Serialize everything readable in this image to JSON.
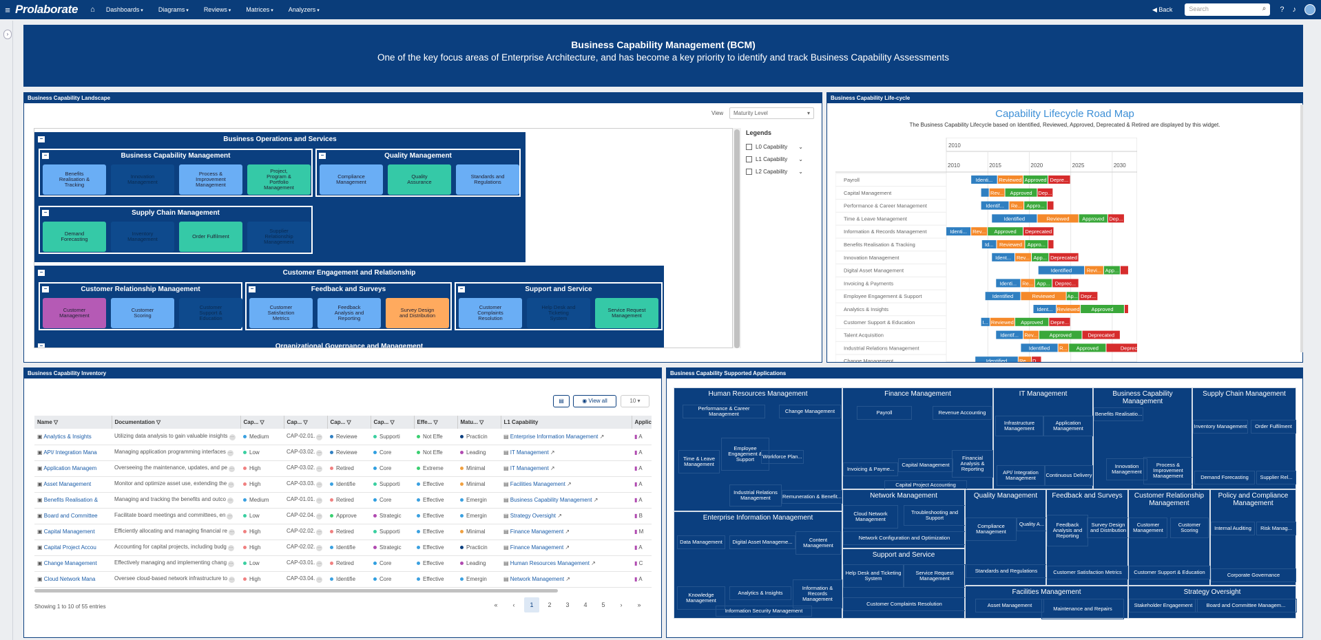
{
  "nav": {
    "logo": "Prolaborate",
    "items": [
      "Dashboards",
      "Diagrams",
      "Reviews",
      "Matrices",
      "Analyzers"
    ],
    "back": "Back",
    "search_placeholder": "Search"
  },
  "banner": {
    "title": "Business Capability Management (BCM)",
    "subtitle": "One of the key focus areas of Enterprise Architecture, and has become a key priority to identify and track Business Capability Assessments"
  },
  "landscape": {
    "header": "Business Capability Landscape",
    "view_label": "View",
    "view_value": "Maturity Level",
    "groups": [
      {
        "title": "Business Operations and Services",
        "subs": [
          {
            "title": "Business Capability Management",
            "caps": [
              [
                "Benefits Realisation & Tracking",
                "lb"
              ],
              [
                "Innovation Management",
                "db"
              ],
              [
                "Process & Improvement Management",
                "lb"
              ],
              [
                "Project, Program & Portfolio Management",
                "gr"
              ]
            ]
          },
          {
            "title": "Quality Management",
            "caps": [
              [
                "Compliance Management",
                "lb"
              ],
              [
                "Quality Assurance",
                "gr"
              ],
              [
                "Standards and Regulations",
                "lb"
              ]
            ]
          },
          {
            "title": "Supply Chain Management",
            "caps": [
              [
                "Demand Forecasting",
                "gr"
              ],
              [
                "Inventory Management",
                "db"
              ],
              [
                "Order Fulfilment",
                "gr"
              ],
              [
                "Supplier Relationship Management",
                "db"
              ]
            ]
          }
        ]
      },
      {
        "title": "Customer Engagement and Relationship",
        "subs": [
          {
            "title": "Customer Relationship Management",
            "caps": [
              [
                "Customer Management",
                "pu"
              ],
              [
                "Customer Scoring",
                "lb"
              ],
              [
                "Customer Support & Education",
                "db"
              ]
            ]
          },
          {
            "title": "Feedback and Surveys",
            "caps": [
              [
                "Customer Satisfaction Metrics",
                "lb"
              ],
              [
                "Feedback Analysis and Reporting",
                "lb"
              ],
              [
                "Survey Design and Distribution",
                "or"
              ]
            ]
          },
          {
            "title": "Support and Service",
            "caps": [
              [
                "Customer Complaints Resolution",
                "lb"
              ],
              [
                "Help Desk and Ticketing System",
                "db"
              ],
              [
                "Service Request Management",
                "gr"
              ]
            ]
          }
        ]
      },
      {
        "title": "Organizational Governance and Management",
        "subs": []
      }
    ],
    "legend": {
      "title": "Legends",
      "items": [
        "L0 Capability",
        "L1 Capability",
        "L2 Capability"
      ]
    }
  },
  "lifecycle": {
    "header": "Business Capability Life-cycle",
    "title": "Capability Lifecycle Road Map",
    "subtitle": "The Business Capability Lifecycle based on Identified, Reviewed, Approved, Deprecated & Retired are displayed by this widget.",
    "years": [
      "2010",
      "2015",
      "2020",
      "2025",
      "2030"
    ],
    "top_year": "2010",
    "colors": {
      "Identified": "#2f7fc1",
      "Reviewed": "#f5892a",
      "Approved": "#3aa83a",
      "Deprecated": "#d62c2c"
    },
    "rows": [
      {
        "name": "Payroll",
        "bars": [
          [
            "Identified",
            2013,
            2016.2
          ],
          [
            "Reviewed",
            2016.2,
            2019.3
          ],
          [
            "Approved",
            2019.3,
            2022.3
          ],
          [
            "Deprecated",
            2022.3,
            2025
          ]
        ]
      },
      {
        "name": "Capital Management",
        "bars": [
          [
            "Identified",
            2014.2,
            2015.2
          ],
          [
            "Reviewed",
            2015.2,
            2017.1
          ],
          [
            "Approved",
            2017.1,
            2021
          ],
          [
            "Deprecated",
            2021,
            2022.9
          ]
        ]
      },
      {
        "name": "Performance & Career Management",
        "bars": [
          [
            "Identified",
            2014.2,
            2017.6
          ],
          [
            "Reviewed",
            2017.6,
            2019.4
          ],
          [
            "Approved",
            2019.4,
            2022.2
          ],
          [
            "Deprecated",
            2022.2,
            2023
          ]
        ]
      },
      {
        "name": "Time & Leave Management",
        "bars": [
          [
            "Identified",
            2015.5,
            2021
          ],
          [
            "Reviewed",
            2021,
            2026
          ],
          [
            "Approved",
            2026,
            2029.5
          ],
          [
            "Deprecated",
            2029.5,
            2031.5
          ]
        ]
      },
      {
        "name": "Information & Records Management",
        "bars": [
          [
            "Identified",
            2010,
            2013
          ],
          [
            "Reviewed",
            2013,
            2015
          ],
          [
            "Approved",
            2015,
            2019.3
          ],
          [
            "Deprecated",
            2019.3,
            2023
          ]
        ]
      },
      {
        "name": "Benefits Realisation & Tracking",
        "bars": [
          [
            "Identified",
            2014.3,
            2016.1
          ],
          [
            "Reviewed",
            2016.1,
            2019.5
          ],
          [
            "Approved",
            2019.5,
            2022.3
          ],
          [
            "Deprecated",
            2022.3,
            2023
          ]
        ]
      },
      {
        "name": "Innovation Management",
        "bars": [
          [
            "Identified",
            2015.5,
            2018.3
          ],
          [
            "Reviewed",
            2018.3,
            2020.3
          ],
          [
            "Approved",
            2020.3,
            2022.4
          ],
          [
            "Deprecated",
            2022.4,
            2026
          ]
        ]
      },
      {
        "name": "Digital Asset Management",
        "bars": [
          [
            "Identified",
            2021.1,
            2026.7
          ],
          [
            "Reviewed",
            2026.7,
            2029
          ],
          [
            "Approved",
            2029,
            2031
          ],
          [
            "Deprecated",
            2031,
            2032
          ]
        ]
      },
      {
        "name": "Invoicing & Payments",
        "bars": [
          [
            "Identified",
            2016,
            2019
          ],
          [
            "Reviewed",
            2019,
            2020.7
          ],
          [
            "Approved",
            2020.7,
            2022.8
          ],
          [
            "Deprecated",
            2022.8,
            2026
          ]
        ]
      },
      {
        "name": "Employee Engagement & Support",
        "bars": [
          [
            "Identified",
            2014.7,
            2019
          ],
          [
            "Reviewed",
            2019,
            2024.5
          ],
          [
            "Approved",
            2024.5,
            2026
          ],
          [
            "Deprecated",
            2026,
            2028.3
          ]
        ]
      },
      {
        "name": "Analytics & Insights",
        "bars": [
          [
            "Identified",
            2020.5,
            2023.3
          ],
          [
            "Reviewed",
            2023.3,
            2026.2
          ],
          [
            "Approved",
            2026.2,
            2031.5
          ],
          [
            "Deprecated",
            2031.5,
            2032
          ]
        ]
      },
      {
        "name": "Customer Support & Education",
        "bars": [
          [
            "Identified",
            2014.2,
            2015.3
          ],
          [
            "Reviewed",
            2015.3,
            2018.3
          ],
          [
            "Approved",
            2018.3,
            2022.4
          ],
          [
            "Deprecated",
            2022.4,
            2025
          ]
        ]
      },
      {
        "name": "Talent Acquisition",
        "bars": [
          [
            "Identified",
            2016,
            2019.3
          ],
          [
            "Reviewed",
            2019.3,
            2021.2
          ],
          [
            "Approved",
            2021.2,
            2026.4
          ],
          [
            "Deprecated",
            2026.4,
            2031
          ]
        ]
      },
      {
        "name": "Industrial Relations Management",
        "bars": [
          [
            "Identified",
            2019,
            2023.5
          ],
          [
            "Reviewed",
            2023.5,
            2024.8
          ],
          [
            "Approved",
            2024.8,
            2029.3
          ],
          [
            "Deprecated",
            2029.3,
            2036
          ]
        ]
      },
      {
        "name": "Change Management",
        "bars": [
          [
            "Identified",
            2013.5,
            2018.7
          ],
          [
            "Reviewed",
            2018.7,
            2020.3
          ],
          [
            "Deprecated",
            2020.3,
            2021.5
          ]
        ]
      }
    ]
  },
  "inventory": {
    "header": "Business Capability Inventory",
    "view_all": "View all",
    "page_size": "10",
    "columns": [
      "Name",
      "Documentation",
      "Cap...",
      "Cap...",
      "Cap...",
      "Cap...",
      "Effe...",
      "Matu...",
      "L1 Capability",
      "Applic"
    ],
    "rows": [
      [
        "Analytics & Insights",
        "Utilizing data analysis to gain valuable insights",
        "Medium",
        "CAP-02.01.",
        "Reviewe",
        "Supporti",
        "Not Effe",
        "Practicin",
        "Enterprise Information Management",
        "A"
      ],
      [
        "API/ Integration Mana",
        "Managing application programming interfaces",
        "Low",
        "CAP-03.02.",
        "Reviewe",
        "Core",
        "Not Effe",
        "Leading",
        "IT Management",
        "A"
      ],
      [
        "Application Managem",
        "Overseeing the maintenance, updates, and pe",
        "High",
        "CAP-03.02.",
        "Retired",
        "Core",
        "Extreme",
        "Minimal",
        "IT Management",
        "A"
      ],
      [
        "Asset Management",
        "Monitor and optimize asset use, extending the",
        "High",
        "CAP-03.03.",
        "Identifie",
        "Supporti",
        "Effective",
        "Minimal",
        "Facilities Management",
        "A"
      ],
      [
        "Benefits Realisation &",
        "Managing and tracking the benefits and outco",
        "Medium",
        "CAP-01.01.",
        "Retired",
        "Core",
        "Effective",
        "Emergin",
        "Business Capability Management",
        "A"
      ],
      [
        "Board and Committee",
        "Facilitate board meetings and committees, en",
        "Low",
        "CAP-02.04.",
        "Approve",
        "Strategic",
        "Effective",
        "Emergin",
        "Strategy Oversight",
        "B"
      ],
      [
        "Capital Management",
        "Efficiently allocating and managing financial re",
        "High",
        "CAP-02.02.",
        "Retired",
        "Supporti",
        "Effective",
        "Minimal",
        "Finance Management",
        "M"
      ],
      [
        "Capital Project Accou",
        "Accounting for capital projects, including budg",
        "High",
        "CAP-02.02.",
        "Identifie",
        "Strategic",
        "Effective",
        "Practicin",
        "Finance Management",
        "A"
      ],
      [
        "Change Management",
        "Effectively managing and implementing chang",
        "Low",
        "CAP-03.01.",
        "Retired",
        "Core",
        "Effective",
        "Leading",
        "Human Resources Management",
        "C"
      ],
      [
        "Cloud Network Mana",
        "Oversee cloud-based network infrastructure to",
        "High",
        "CAP-03.04.",
        "Identifie",
        "Core",
        "Effective",
        "Emergin",
        "Network Management",
        "A"
      ]
    ],
    "showing": "Showing 1 to 10 of 55 entries",
    "pages": [
      "«",
      "‹",
      "1",
      "2",
      "3",
      "4",
      "5",
      "›",
      "»"
    ]
  },
  "apps": {
    "header": "Business Capability Supported Applications",
    "blocks": {
      "hr": "Human Resources Management",
      "fin": "Finance Management",
      "it": "IT Management",
      "bcm": "Business Capability Management",
      "scm": "Supply Chain Management",
      "eim": "Enterprise Information Management",
      "net": "Network Management",
      "qm": "Quality Management",
      "fs": "Feedback and Surveys",
      "crm": "Customer Relationship Management",
      "pc": "Policy and Compliance Management",
      "ss": "Support and Service",
      "fm": "Facilities Management",
      "so": "Strategy Oversight"
    },
    "leaves": {
      "hr": [
        "Performance & Career Management",
        "Change Management",
        "Time & Leave Management",
        "Employee Engagement & Support",
        "Workforce Plan...",
        "Industrial Relations Management",
        "Remuneration & Benefit..."
      ],
      "fin": [
        "Payroll",
        "Revenue Accounting",
        "Invoicing & Payme...",
        "Capital Management",
        "Financial Analysis & Reporting",
        "Capital Project Accounting"
      ],
      "it": [
        "Infrastructure Management",
        "Application Management",
        "API/ Integration Management",
        "Continuous Delivery"
      ],
      "bcm": [
        "Benefits Realisatio...",
        "Innovation Management",
        "Process & Improvement Management"
      ],
      "scm": [
        "Inventory Management",
        "Order Fulfilment",
        "Demand Forecasting",
        "Supplier Rel..."
      ],
      "eim": [
        "Data Management",
        "Digital Asset Manageme...",
        "Content Management",
        "Knowledge Management",
        "Analytics & Insights",
        "Information & Records Management",
        "Information Security Management"
      ],
      "net": [
        "Cloud Network Management",
        "Troubleshooting and Support",
        "Network Configuration and Optimization"
      ],
      "qm": [
        "Compliance Management",
        "Quality A...",
        "Standards and Regulations"
      ],
      "fs": [
        "Feedback Analysis and Reporting",
        "Survey Design and Distribution",
        "Customer Satisfaction Metrics"
      ],
      "crm": [
        "Customer Management",
        "Customer Scoring",
        "Customer Support & Education"
      ],
      "pc": [
        "Internal Auditing",
        "Risk Manag...",
        "Corporate Governance"
      ],
      "ss": [
        "Help Desk and Ticketing System",
        "Service Request Management",
        "Customer Complaints Resolution"
      ],
      "fm": [
        "Asset Management",
        "Maintenance and Repairs"
      ],
      "so": [
        "Stakeholder Engagement",
        "Board and Committee Managem..."
      ]
    }
  }
}
